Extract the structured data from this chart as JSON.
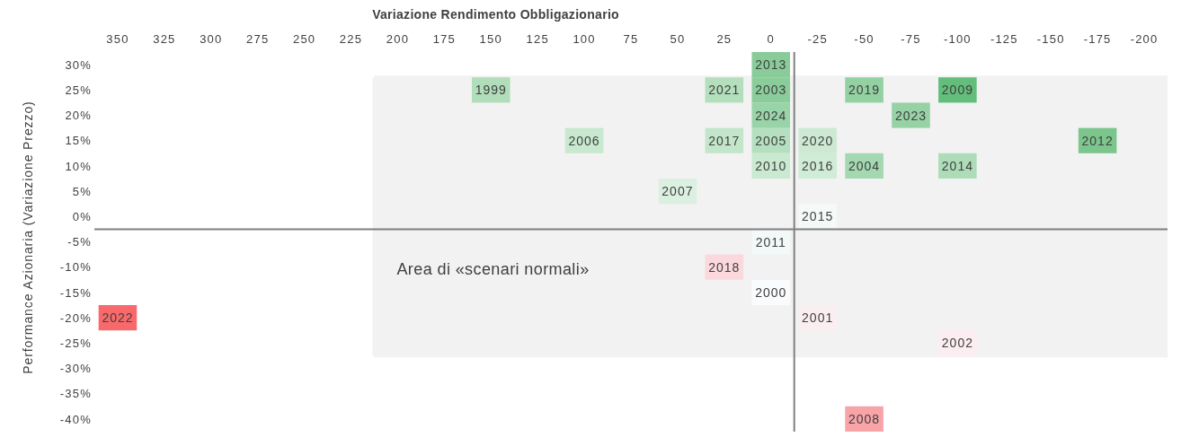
{
  "chart_data": {
    "type": "scatter",
    "xlabel": "Variazione Rendimento Obbligazionario",
    "ylabel": "Performance Azionaria (Variazione Prezzo)",
    "x": [
      150,
      0,
      -25,
      -100,
      0,
      -50,
      0,
      100,
      50,
      -50,
      -100,
      0,
      0,
      -175,
      0,
      -100,
      -25,
      -25,
      25,
      25,
      -50,
      -25,
      25,
      350,
      -75,
      0
    ],
    "values": [
      25,
      -15,
      -20,
      -25,
      25,
      10,
      15,
      15,
      5,
      -40,
      25,
      10,
      -5,
      15,
      30,
      10,
      0,
      10,
      15,
      -10,
      25,
      15,
      25,
      -20,
      20,
      20
    ],
    "colors": [
      "#b0ddba",
      "#fafbfc",
      "#fbeef0",
      "#fbedf0",
      "#8acd9b",
      "#a3d8b0",
      "#b5e0bf",
      "#c8e8cf",
      "#dbf0e0",
      "#f8a3a8",
      "#63be7b",
      "#cae9d1",
      "#f3f8f8",
      "#7cc68e",
      "#89cc9a",
      "#addcb8",
      "#f5f9f8",
      "#d0ebd6",
      "#c3e6cb",
      "#fad8dc",
      "#93d1a3",
      "#cde9d3",
      "#b3dfbd",
      "#f8696b",
      "#96d2a5",
      "#99d3a8"
    ],
    "annotations": [
      {
        "text": "1999",
        "x": 150,
        "y": 25
      },
      {
        "text": "2000",
        "x": 0,
        "y": -15
      },
      {
        "text": "2001",
        "x": -25,
        "y": -20
      },
      {
        "text": "2002",
        "x": -100,
        "y": -25
      },
      {
        "text": "2003",
        "x": 0,
        "y": 25
      },
      {
        "text": "2004",
        "x": -50,
        "y": 10
      },
      {
        "text": "2005",
        "x": 0,
        "y": 15
      },
      {
        "text": "2006",
        "x": 100,
        "y": 15
      },
      {
        "text": "2007",
        "x": 50,
        "y": 5
      },
      {
        "text": "2008",
        "x": -50,
        "y": -40
      },
      {
        "text": "2009",
        "x": -100,
        "y": 25
      },
      {
        "text": "2010",
        "x": 0,
        "y": 10
      },
      {
        "text": "2011",
        "x": 0,
        "y": -5
      },
      {
        "text": "2012",
        "x": -175,
        "y": 15
      },
      {
        "text": "2013",
        "x": 0,
        "y": 30
      },
      {
        "text": "2014",
        "x": -100,
        "y": 10
      },
      {
        "text": "2015",
        "x": -25,
        "y": 0
      },
      {
        "text": "2016",
        "x": -25,
        "y": 10
      },
      {
        "text": "2017",
        "x": 25,
        "y": 15
      },
      {
        "text": "2018",
        "x": 25,
        "y": -10
      },
      {
        "text": "2019",
        "x": -50,
        "y": 25
      },
      {
        "text": "2020",
        "x": -25,
        "y": 15
      },
      {
        "text": "2021",
        "x": 25,
        "y": 25
      },
      {
        "text": "2022",
        "x": 350,
        "y": -20
      },
      {
        "text": "2023",
        "x": -75,
        "y": 20
      },
      {
        "text": "2024",
        "x": 0,
        "y": 20
      }
    ],
    "marker": "square",
    "xlim": [
      362.5,
      -212.5
    ],
    "ylim": [
      -42.5,
      32.5
    ],
    "xticks": [
      350,
      325,
      300,
      275,
      250,
      225,
      200,
      175,
      150,
      125,
      100,
      75,
      50,
      25,
      0,
      -25,
      -50,
      -75,
      -100,
      -125,
      -150,
      -175,
      -200
    ],
    "yticks": [
      {
        "value": 30,
        "label": "30%"
      },
      {
        "value": 25,
        "label": "25%"
      },
      {
        "value": 20,
        "label": "20%"
      },
      {
        "value": 15,
        "label": "15%"
      },
      {
        "value": 10,
        "label": "10%"
      },
      {
        "value": 5,
        "label": "5%"
      },
      {
        "value": 0,
        "label": "0%"
      },
      {
        "value": -5,
        "label": "-5%"
      },
      {
        "value": -10,
        "label": "-10%"
      },
      {
        "value": -15,
        "label": "-15%"
      },
      {
        "value": -20,
        "label": "-20%"
      },
      {
        "value": -25,
        "label": "-25%"
      },
      {
        "value": -30,
        "label": "-30%"
      },
      {
        "value": -35,
        "label": "-35%"
      },
      {
        "value": -40,
        "label": "-40%"
      }
    ],
    "ref_lines": [
      {
        "axis": "x",
        "value": -12.5,
        "color": "#7f7f7f"
      },
      {
        "axis": "y",
        "value": -2.5,
        "color": "#7f7f7f"
      }
    ],
    "bands": [
      {
        "axis": "x",
        "from": 212.5,
        "to": -212.5,
        "label": "Area di «scenari normali»",
        "color": "#f2f2f2"
      },
      {
        "axis": "y",
        "from": -27.5,
        "to": 27.5,
        "color": "#f2f2f2"
      }
    ]
  }
}
